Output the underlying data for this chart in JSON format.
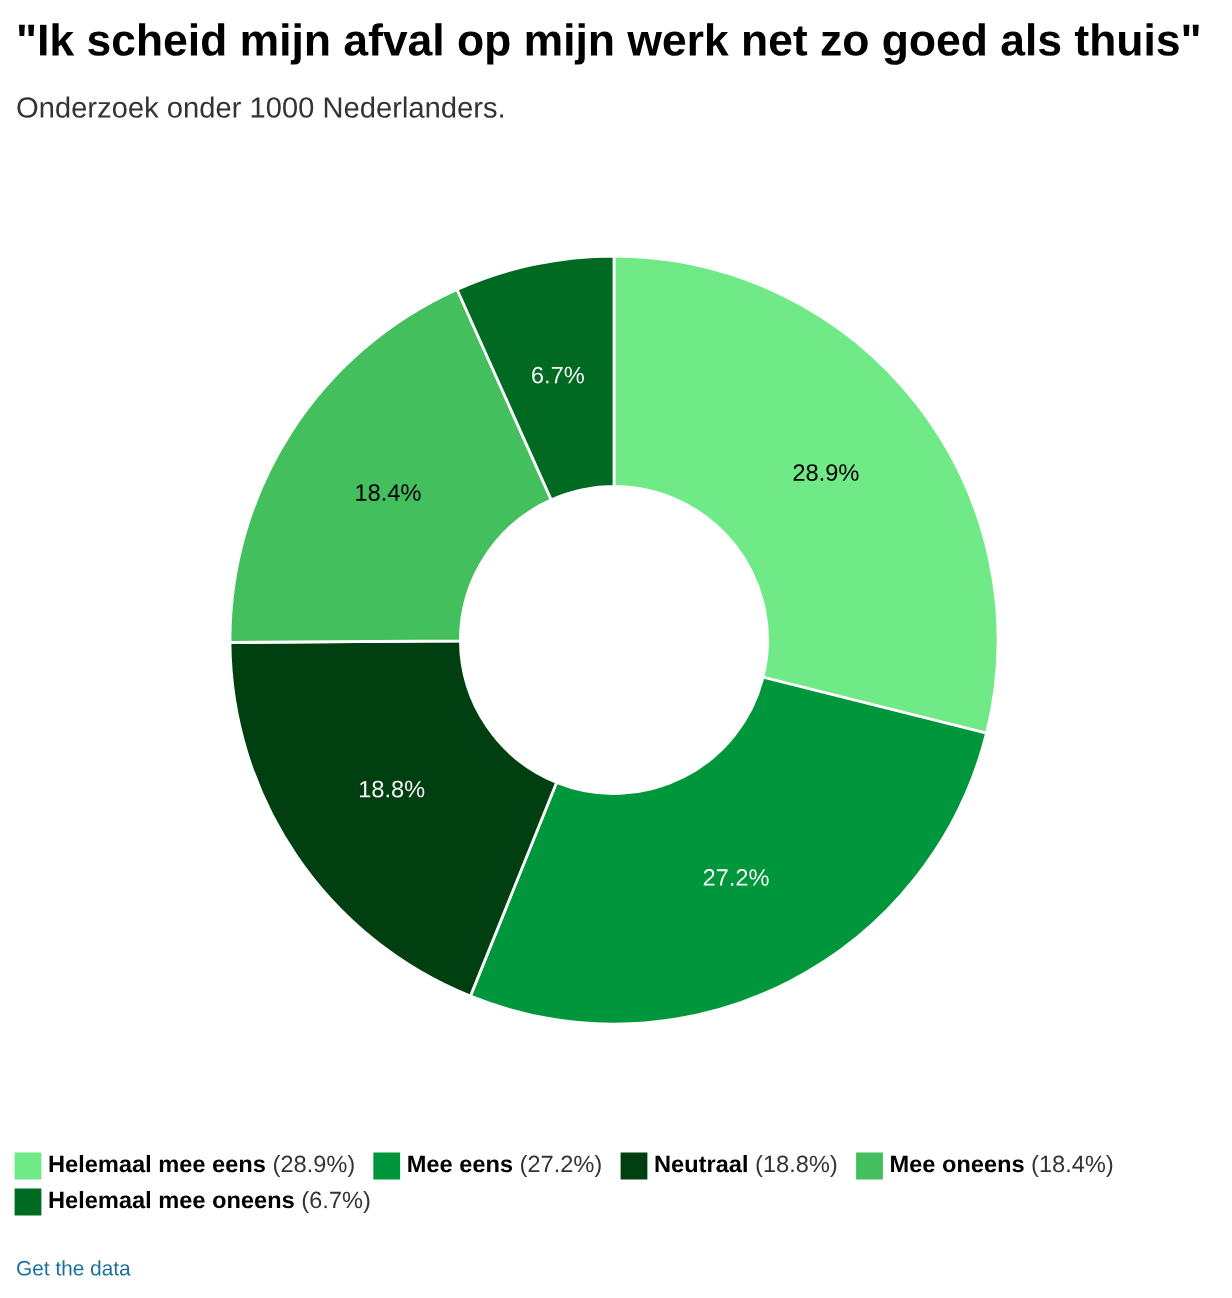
{
  "chart_data": {
    "type": "donut",
    "title": "\"Ik scheid mijn afval op mijn werk net zo goed als thuis\"",
    "subtitle": "Onderzoek onder 1000 Nederlanders.",
    "categories": [
      "Helemaal mee eens (28.9%)",
      "Mee eens (27.2%)",
      "Neutraal (18.8%)",
      "Mee oneens (18.4%)",
      "Helemaal mee oneens (6.7%)"
    ],
    "values": [
      28.9,
      27.2,
      18.8,
      18.4,
      6.7
    ],
    "colors": [
      "#6fea86",
      "#00963c",
      "#003f0f",
      "#44bf5e",
      "#006a23"
    ],
    "value_labels": [
      "28.9%",
      "27.2%",
      "18.8%",
      "18.4%",
      "6.7%"
    ],
    "legend": "bottom",
    "annotations": [
      "Get the data"
    ]
  }
}
